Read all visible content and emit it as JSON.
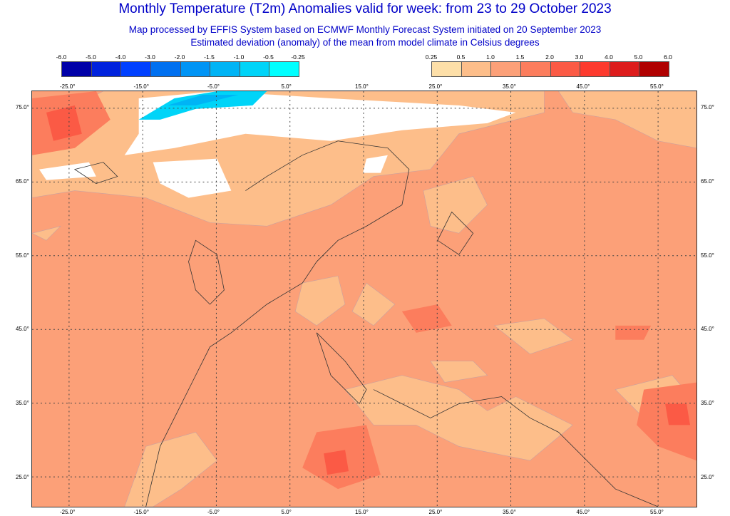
{
  "title": "Monthly Temperature (T2m) Anomalies valid for week: from 23 to 29 October 2023",
  "subtitle1": "Map processed by EFFIS System based on ECMWF Monthly Forecast System initiated on 20 September 2023",
  "subtitle2": "Estimated deviation (anomaly) of the mean from model climate in Celsius degrees",
  "cold_legend": {
    "labels": [
      "-6.0",
      "-5.0",
      "-4.0",
      "-3.0",
      "-2.0",
      "-1.5",
      "-1.0",
      "-0.5",
      "-0.25"
    ],
    "colors": [
      "#0000a8",
      "#0022dd",
      "#0040ff",
      "#0070f0",
      "#0094f5",
      "#00b4f5",
      "#00d4f8",
      "#00ffff"
    ]
  },
  "warm_legend": {
    "labels": [
      "0.25",
      "0.5",
      "1.0",
      "1.5",
      "2.0",
      "3.0",
      "4.0",
      "5.0",
      "6.0"
    ],
    "colors": [
      "#fddfa8",
      "#fdbe8a",
      "#fca078",
      "#fc7d5d",
      "#fb5a45",
      "#fd3a2e",
      "#dd1c1c",
      "#b00000"
    ]
  },
  "lon_labels": [
    "-25.0°",
    "-15.0°",
    "-5.0°",
    "5.0°",
    "15.0°",
    "25.0°",
    "35.0°",
    "45.0°",
    "55.0°"
  ],
  "lat_labels": [
    "75.0°",
    "65.0°",
    "55.0°",
    "45.0°",
    "35.0°",
    "25.0°"
  ]
}
